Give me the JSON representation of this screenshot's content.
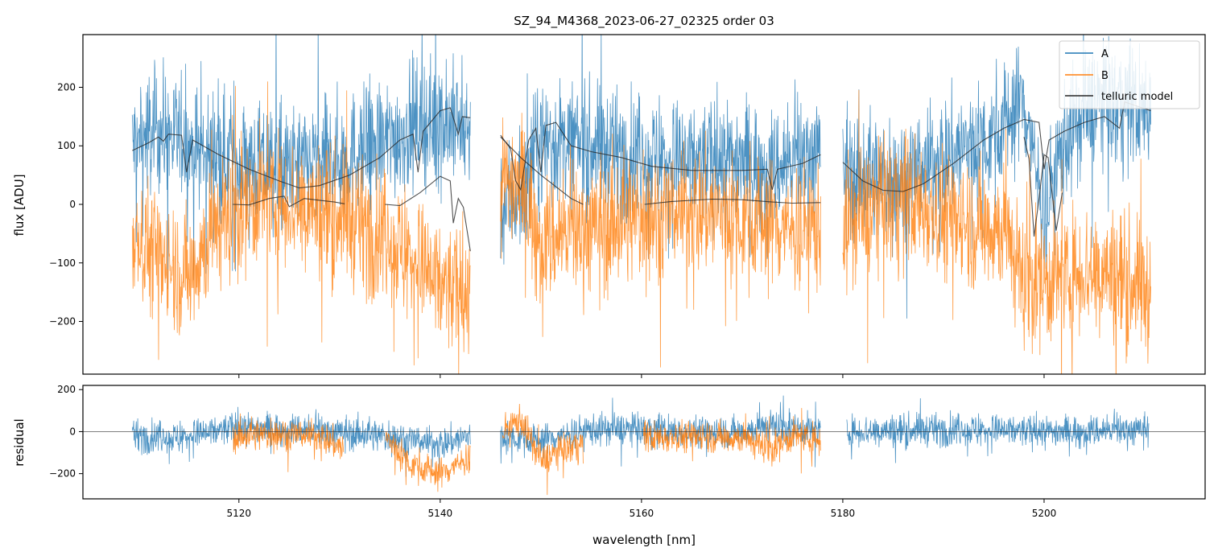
{
  "chart_data": {
    "type": "line",
    "title": "SZ_94_M4368_2023-06-27_02325  order 03",
    "colors": {
      "A": "#1f77b4",
      "B": "#ff7f0e",
      "telluric": "#262626",
      "axis": "#000000"
    },
    "legend": {
      "placement": "top-right",
      "entries": [
        "A",
        "B",
        "telluric model"
      ]
    },
    "xlabel": "wavelength [nm]",
    "xlim": [
      5104.5,
      5216
    ],
    "xticks": [
      5120,
      5140,
      5160,
      5180,
      5200
    ],
    "top_panel": {
      "ylabel": "flux [ADU]",
      "ylim": [
        -290,
        290
      ],
      "yticks": [
        200,
        100,
        0,
        -100,
        -200
      ],
      "series": [
        {
          "name": "A",
          "type": "noisy-spectrum",
          "segments": [
            [
              5109.4,
              5143.0
            ],
            [
              5146.0,
              5177.8
            ],
            [
              5180.0,
              5210.6
            ]
          ],
          "envelope": [
            [
              5109.4,
              100
            ],
            [
              5112,
              130
            ],
            [
              5115,
              100
            ],
            [
              5120,
              70
            ],
            [
              5125,
              60
            ],
            [
              5130,
              80
            ],
            [
              5135,
              110
            ],
            [
              5138,
              140
            ],
            [
              5141,
              140
            ],
            [
              5143,
              130
            ],
            [
              5146,
              0
            ],
            [
              5148,
              20
            ],
            [
              5150,
              110
            ],
            [
              5155,
              100
            ],
            [
              5160,
              80
            ],
            [
              5165,
              70
            ],
            [
              5170,
              80
            ],
            [
              5173,
              60
            ],
            [
              5177.8,
              90
            ],
            [
              5180,
              60
            ],
            [
              5185,
              40
            ],
            [
              5190,
              80
            ],
            [
              5195,
              120
            ],
            [
              5198,
              180
            ],
            [
              5200,
              -20
            ],
            [
              5202,
              110
            ],
            [
              5205,
              170
            ],
            [
              5208,
              170
            ],
            [
              5210.6,
              160
            ]
          ],
          "noise": 75
        },
        {
          "name": "B",
          "type": "noisy-spectrum",
          "segments": [
            [
              5109.4,
              5143.0
            ],
            [
              5146.0,
              5177.8
            ],
            [
              5180.0,
              5210.6
            ]
          ],
          "envelope": [
            [
              5109.4,
              -40
            ],
            [
              5112,
              -90
            ],
            [
              5115,
              -120
            ],
            [
              5118,
              -30
            ],
            [
              5122,
              10
            ],
            [
              5126,
              0
            ],
            [
              5130,
              -20
            ],
            [
              5134,
              -50
            ],
            [
              5137,
              -90
            ],
            [
              5140,
              -140
            ],
            [
              5143,
              -160
            ],
            [
              5146,
              40
            ],
            [
              5148,
              40
            ],
            [
              5150,
              -60
            ],
            [
              5155,
              -40
            ],
            [
              5160,
              -20
            ],
            [
              5165,
              -10
            ],
            [
              5170,
              -20
            ],
            [
              5175,
              -40
            ],
            [
              5177.8,
              -40
            ],
            [
              5180,
              -40
            ],
            [
              5185,
              10
            ],
            [
              5188,
              0
            ],
            [
              5192,
              -30
            ],
            [
              5196,
              -40
            ],
            [
              5198,
              -130
            ],
            [
              5201,
              -130
            ],
            [
              5204,
              -110
            ],
            [
              5207,
              -120
            ],
            [
              5210.6,
              -150
            ]
          ],
          "noise": 80
        },
        {
          "name": "telluric model (A)",
          "type": "line",
          "points": [
            [
              5109.4,
              92
            ],
            [
              5111,
              105
            ],
            [
              5112,
              115
            ],
            [
              5112.5,
              108
            ],
            [
              5113,
              120
            ],
            [
              5114.3,
              118
            ],
            [
              5114.8,
              55
            ],
            [
              5115.4,
              110
            ],
            [
              5118,
              85
            ],
            [
              5121,
              60
            ],
            [
              5124,
              40
            ],
            [
              5126,
              28
            ],
            [
              5128,
              32
            ],
            [
              5131,
              50
            ],
            [
              5134,
              80
            ],
            [
              5136,
              110
            ],
            [
              5137.3,
              120
            ],
            [
              5137.8,
              55
            ],
            [
              5138.3,
              125
            ],
            [
              5140,
              160
            ],
            [
              5141,
              165
            ],
            [
              5141.8,
              120
            ],
            [
              5142.2,
              150
            ],
            [
              5143,
              148
            ]
          ],
          "points2": [
            [
              5146,
              118
            ],
            [
              5147,
              95
            ],
            [
              5147.5,
              40
            ],
            [
              5148,
              25
            ],
            [
              5148.8,
              110
            ],
            [
              5149.5,
              130
            ],
            [
              5150,
              55
            ],
            [
              5150.5,
              135
            ],
            [
              5151.5,
              140
            ],
            [
              5153,
              100
            ],
            [
              5155,
              90
            ],
            [
              5158,
              80
            ],
            [
              5161,
              65
            ],
            [
              5165,
              58
            ],
            [
              5170,
              58
            ],
            [
              5172.5,
              60
            ],
            [
              5173,
              25
            ],
            [
              5173.5,
              60
            ],
            [
              5176,
              70
            ],
            [
              5177.8,
              85
            ]
          ],
          "points3": [
            [
              5180,
              72
            ],
            [
              5182,
              40
            ],
            [
              5184,
              24
            ],
            [
              5186,
              22
            ],
            [
              5188,
              35
            ],
            [
              5191,
              70
            ],
            [
              5194,
              110
            ],
            [
              5196,
              130
            ],
            [
              5198,
              145
            ],
            [
              5199.5,
              140
            ],
            [
              5200,
              60
            ],
            [
              5200.5,
              110
            ],
            [
              5202,
              125
            ],
            [
              5204,
              140
            ],
            [
              5206,
              150
            ],
            [
              5207.5,
              130
            ],
            [
              5208,
              175
            ],
            [
              5210.6,
              160
            ]
          ]
        },
        {
          "name": "telluric model (B)",
          "type": "line",
          "points": [
            [
              5119.4,
              0
            ],
            [
              5121,
              -1
            ],
            [
              5123,
              10
            ],
            [
              5124.5,
              14
            ],
            [
              5125,
              -4
            ],
            [
              5126.5,
              10
            ],
            [
              5128,
              7
            ],
            [
              5129.5,
              4
            ],
            [
              5130.5,
              1
            ]
          ],
          "points2": [
            [
              5134.5,
              0
            ],
            [
              5136,
              -2
            ],
            [
              5138,
              20
            ],
            [
              5140,
              48
            ],
            [
              5141,
              40
            ],
            [
              5141.3,
              -32
            ],
            [
              5141.8,
              10
            ],
            [
              5142.3,
              -5
            ],
            [
              5143,
              -80
            ]
          ],
          "points3": [
            [
              5146,
              115
            ],
            [
              5148,
              80
            ],
            [
              5150,
              50
            ],
            [
              5153,
              10
            ],
            [
              5154.2,
              0
            ]
          ],
          "points4": [
            [
              5160.3,
              0
            ],
            [
              5163,
              5
            ],
            [
              5167,
              9
            ],
            [
              5170,
              8
            ],
            [
              5173,
              4
            ],
            [
              5175,
              2
            ],
            [
              5177.8,
              3
            ]
          ],
          "points5": [
            [
              5198,
              115
            ],
            [
              5198.5,
              78
            ],
            [
              5199,
              -55
            ],
            [
              5199.5,
              10
            ],
            [
              5200,
              85
            ],
            [
              5200.4,
              80
            ],
            [
              5201.2,
              -45
            ],
            [
              5201.8,
              20
            ]
          ]
        }
      ]
    },
    "bottom_panel": {
      "ylabel": "residual",
      "ylim": [
        -320,
        220
      ],
      "yticks": [
        200,
        0,
        -200
      ],
      "series": [
        {
          "name": "A",
          "type": "noisy-spectrum",
          "segments": [
            [
              5109.4,
              5143.0
            ],
            [
              5146.0,
              5177.8
            ],
            [
              5180.4,
              5210.4
            ]
          ],
          "envelope": [
            [
              5109.4,
              -20
            ],
            [
              5114,
              -30
            ],
            [
              5120,
              20
            ],
            [
              5126,
              10
            ],
            [
              5132,
              -10
            ],
            [
              5136,
              -30
            ],
            [
              5140,
              -60
            ],
            [
              5143,
              -20
            ],
            [
              5146,
              -20
            ],
            [
              5150,
              -40
            ],
            [
              5155,
              10
            ],
            [
              5160,
              10
            ],
            [
              5165,
              0
            ],
            [
              5170,
              0
            ],
            [
              5173,
              30
            ],
            [
              5177.8,
              0
            ],
            [
              5180.4,
              0
            ],
            [
              5190,
              10
            ],
            [
              5200,
              0
            ],
            [
              5210.4,
              10
            ]
          ],
          "noise": 55
        },
        {
          "name": "B",
          "type": "noisy-spectrum",
          "segments": [
            [
              5119.4,
              5130.4
            ],
            [
              5134.6,
              5143.0
            ],
            [
              5146.2,
              5154.2
            ],
            [
              5160.2,
              5177.8
            ]
          ],
          "envelope": [
            [
              5119.4,
              -20
            ],
            [
              5124,
              -10
            ],
            [
              5128,
              -20
            ],
            [
              5130.4,
              -80
            ],
            [
              5134.6,
              -30
            ],
            [
              5137,
              -150
            ],
            [
              5140,
              -200
            ],
            [
              5143,
              -120
            ],
            [
              5146.2,
              0
            ],
            [
              5148,
              60
            ],
            [
              5150,
              -140
            ],
            [
              5153,
              -70
            ],
            [
              5154.2,
              -60
            ],
            [
              5160.2,
              -30
            ],
            [
              5165,
              -20
            ],
            [
              5170,
              -30
            ],
            [
              5173,
              -80
            ],
            [
              5175,
              -20
            ],
            [
              5177.8,
              -40
            ]
          ],
          "noise": 55
        }
      ]
    }
  }
}
